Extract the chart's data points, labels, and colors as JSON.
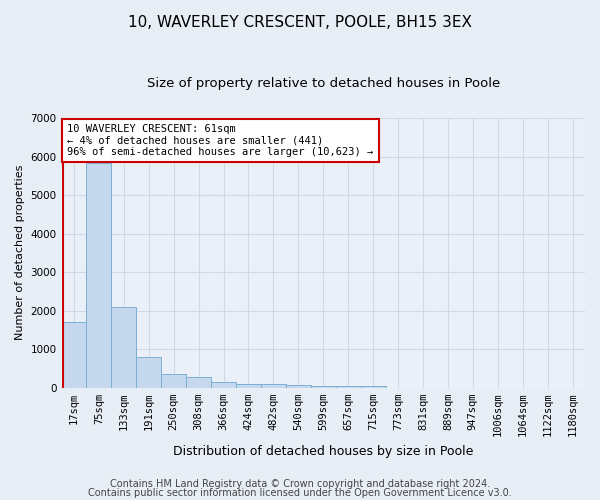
{
  "title1": "10, WAVERLEY CRESCENT, POOLE, BH15 3EX",
  "title2": "Size of property relative to detached houses in Poole",
  "xlabel": "Distribution of detached houses by size in Poole",
  "ylabel": "Number of detached properties",
  "categories": [
    "17sqm",
    "75sqm",
    "133sqm",
    "191sqm",
    "250sqm",
    "308sqm",
    "366sqm",
    "424sqm",
    "482sqm",
    "540sqm",
    "599sqm",
    "657sqm",
    "715sqm",
    "773sqm",
    "831sqm",
    "889sqm",
    "947sqm",
    "1006sqm",
    "1064sqm",
    "1122sqm",
    "1180sqm"
  ],
  "values": [
    1700,
    5820,
    2100,
    800,
    350,
    270,
    150,
    100,
    80,
    60,
    50,
    40,
    30,
    0,
    0,
    0,
    0,
    0,
    0,
    0,
    0
  ],
  "bar_color": "#C5D8EE",
  "bar_edge_color": "#7AAFD4",
  "annotation_text": "10 WAVERLEY CRESCENT: 61sqm\n← 4% of detached houses are smaller (441)\n96% of semi-detached houses are larger (10,623) →",
  "annotation_box_color": "#ffffff",
  "annotation_box_edge_color": "#cc0000",
  "vline_color": "#cc0000",
  "vline_x": -0.45,
  "ylim": [
    0,
    7000
  ],
  "yticks": [
    0,
    1000,
    2000,
    3000,
    4000,
    5000,
    6000,
    7000
  ],
  "footer1": "Contains HM Land Registry data © Crown copyright and database right 2024.",
  "footer2": "Contains public sector information licensed under the Open Government Licence v3.0.",
  "bg_color": "#E8EEF5",
  "plot_bg_color": "#EBF0F8",
  "grid_color": "#d0d8e8",
  "title1_fontsize": 11,
  "title2_fontsize": 9.5,
  "xlabel_fontsize": 9,
  "ylabel_fontsize": 8,
  "tick_fontsize": 7.5,
  "footer_fontsize": 7
}
